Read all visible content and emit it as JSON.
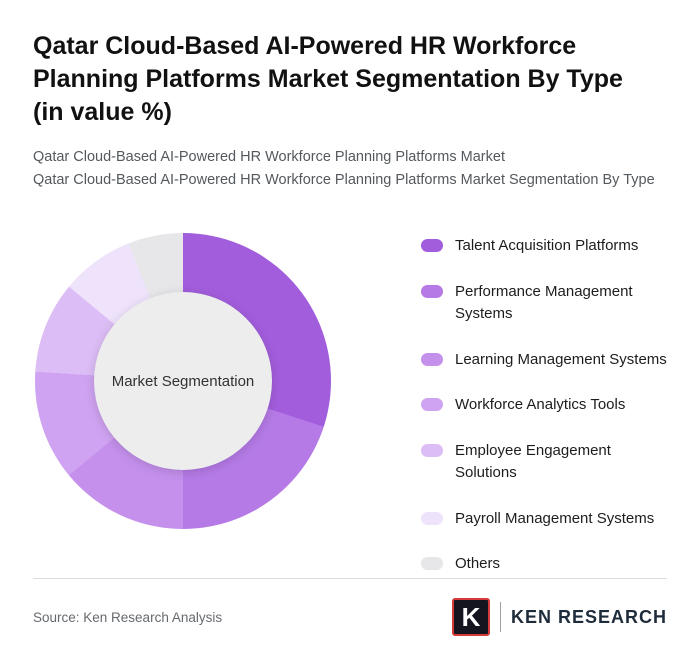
{
  "header": {
    "title": "Qatar Cloud-Based AI-Powered HR Workforce Planning Platforms Market Segmentation By Type (in value %)",
    "subtitle_1": "Qatar Cloud-Based AI-Powered HR Workforce Planning Platforms Market",
    "subtitle_2": "Qatar Cloud-Based AI-Powered HR Workforce Planning Platforms Market Segmentation By Type"
  },
  "chart_data": {
    "type": "pie",
    "variant": "donut",
    "center_label": "Market Segmentation",
    "legend_position": "right",
    "start_angle_deg": 0,
    "direction": "clockwise",
    "segments": [
      {
        "label": "Talent Acquisition Platforms",
        "value": 30,
        "color": "#a25ddc"
      },
      {
        "label": "Performance Management Systems",
        "value": 20,
        "color": "#b57ae6"
      },
      {
        "label": "Learning Management Systems",
        "value": 14,
        "color": "#c490ec"
      },
      {
        "label": "Workforce Analytics Tools",
        "value": 12,
        "color": "#cfa3f1"
      },
      {
        "label": "Employee Engagement Solutions",
        "value": 10,
        "color": "#ddbdf5"
      },
      {
        "label": "Payroll Management Systems",
        "value": 8,
        "color": "#efe3fb"
      },
      {
        "label": "Others",
        "value": 6,
        "color": "#e7e6e9"
      }
    ]
  },
  "footer": {
    "source": "Source: Ken Research Analysis",
    "logo_emblem": "K",
    "logo_text": "KEN RESEARCH"
  }
}
